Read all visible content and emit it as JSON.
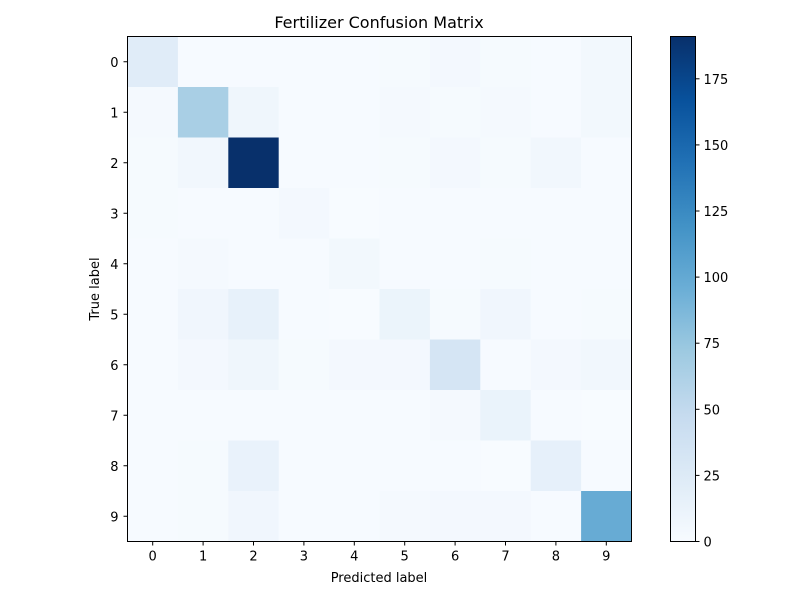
{
  "chart_data": {
    "type": "heatmap",
    "title": "Fertilizer Confusion Matrix",
    "xlabel": "Predicted label",
    "ylabel": "True label",
    "x_categories": [
      "0",
      "1",
      "2",
      "3",
      "4",
      "5",
      "6",
      "7",
      "8",
      "9"
    ],
    "y_categories": [
      "0",
      "1",
      "2",
      "3",
      "4",
      "5",
      "6",
      "7",
      "8",
      "9"
    ],
    "values": [
      [
        22,
        1,
        1,
        1,
        1,
        2,
        4,
        2,
        1,
        5
      ],
      [
        3,
        65,
        8,
        1,
        1,
        3,
        2,
        3,
        1,
        5
      ],
      [
        2,
        6,
        191,
        1,
        1,
        2,
        4,
        2,
        6,
        1
      ],
      [
        2,
        1,
        1,
        4,
        0,
        1,
        1,
        1,
        1,
        1
      ],
      [
        1,
        3,
        1,
        1,
        5,
        1,
        1,
        2,
        1,
        1
      ],
      [
        1,
        7,
        15,
        1,
        0,
        11,
        2,
        7,
        1,
        2
      ],
      [
        1,
        4,
        8,
        2,
        4,
        4,
        33,
        1,
        4,
        6
      ],
      [
        1,
        1,
        1,
        1,
        1,
        1,
        3,
        12,
        1,
        0
      ],
      [
        1,
        2,
        13,
        1,
        1,
        1,
        1,
        0,
        16,
        1
      ],
      [
        1,
        2,
        7,
        1,
        1,
        3,
        4,
        4,
        1,
        98
      ]
    ],
    "colormap": "Blues",
    "colorbar": {
      "vmin": 0,
      "vmax": 191,
      "ticks": [
        "0",
        "25",
        "50",
        "75",
        "100",
        "125",
        "150",
        "175"
      ]
    },
    "grid": false
  }
}
